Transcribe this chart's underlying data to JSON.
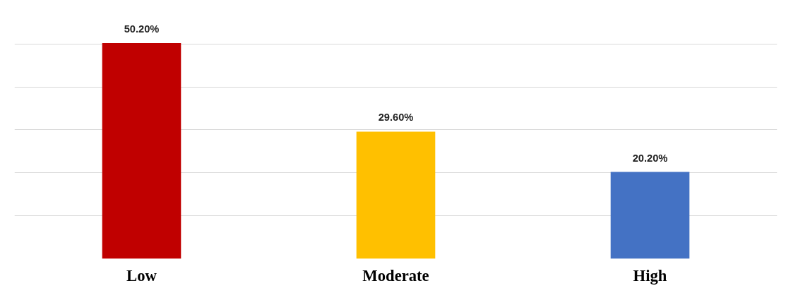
{
  "chart_data": {
    "type": "bar",
    "categories": [
      "Low",
      "Moderate",
      "High"
    ],
    "values": [
      50.2,
      29.6,
      20.2
    ],
    "colors": [
      "#c00000",
      "#ffc000",
      "#4472c4"
    ],
    "value_labels": [
      "50.20%",
      "29.60%",
      "20.20%"
    ],
    "grid": "y",
    "tick_labels": "x"
  }
}
